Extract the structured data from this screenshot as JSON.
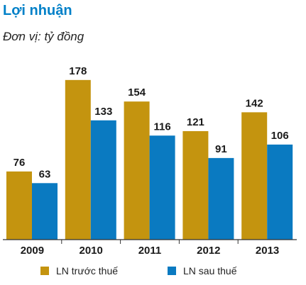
{
  "chart_data": {
    "type": "bar",
    "title": "Lợi nhuận",
    "subtitle": "Đơn vị: tỷ đồng",
    "categories": [
      "2009",
      "2010",
      "2011",
      "2012",
      "2013"
    ],
    "series": [
      {
        "name": "LN trước thuế",
        "values": [
          76,
          178,
          154,
          121,
          142
        ],
        "color": "#c4940f"
      },
      {
        "name": "LN sau thuế",
        "values": [
          63,
          133,
          116,
          91,
          106
        ],
        "color": "#0a7ac1"
      }
    ],
    "ylim": [
      0,
      200
    ],
    "grid": false,
    "data_labels": true,
    "legend_position": "bottom"
  }
}
